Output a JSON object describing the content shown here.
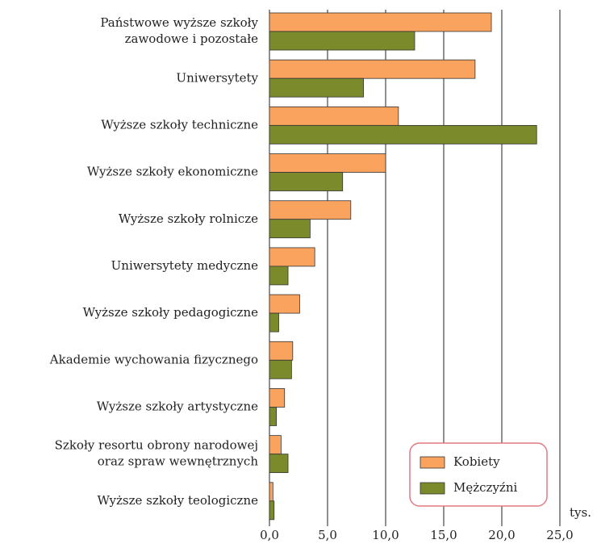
{
  "chart_data": {
    "type": "bar",
    "orientation": "horizontal",
    "categories": [
      "Państwowe wyższe szkoły\nzawodowe i pozostałe",
      "Uniwersytety",
      "Wyższe szkoły techniczne",
      "Wyższe szkoły ekonomiczne",
      "Wyższe szkoły rolnicze",
      "Uniwersytety medyczne",
      "Wyższe szkoły pedagogiczne",
      "Akademie wychowania fizycznego",
      "Wyższe szkoły artystyczne",
      "Szkoły resortu obrony narodowej\noraz spraw wewnętrznych",
      "Wyższe szkoły teologiczne"
    ],
    "series": [
      {
        "name": "Kobiety",
        "color": "#f9a35f",
        "values": [
          19.1,
          17.7,
          11.1,
          10.0,
          7.0,
          3.9,
          2.6,
          2.0,
          1.3,
          1.0,
          0.3
        ]
      },
      {
        "name": "Mężczyźni",
        "color": "#7b8a2a",
        "values": [
          12.5,
          8.1,
          23.0,
          6.3,
          3.5,
          1.6,
          0.8,
          1.9,
          0.6,
          1.6,
          0.4
        ]
      }
    ],
    "xlim": [
      0,
      25
    ],
    "xticks": [
      {
        "value": 0,
        "label": "0,0"
      },
      {
        "value": 5,
        "label": "5,0"
      },
      {
        "value": 10,
        "label": "10,0"
      },
      {
        "value": 15,
        "label": "15,0"
      },
      {
        "value": 20,
        "label": "20,0"
      },
      {
        "value": 25,
        "label": "25,0"
      }
    ],
    "x_label": "tys.",
    "grid": true,
    "legend": "lower-right"
  }
}
